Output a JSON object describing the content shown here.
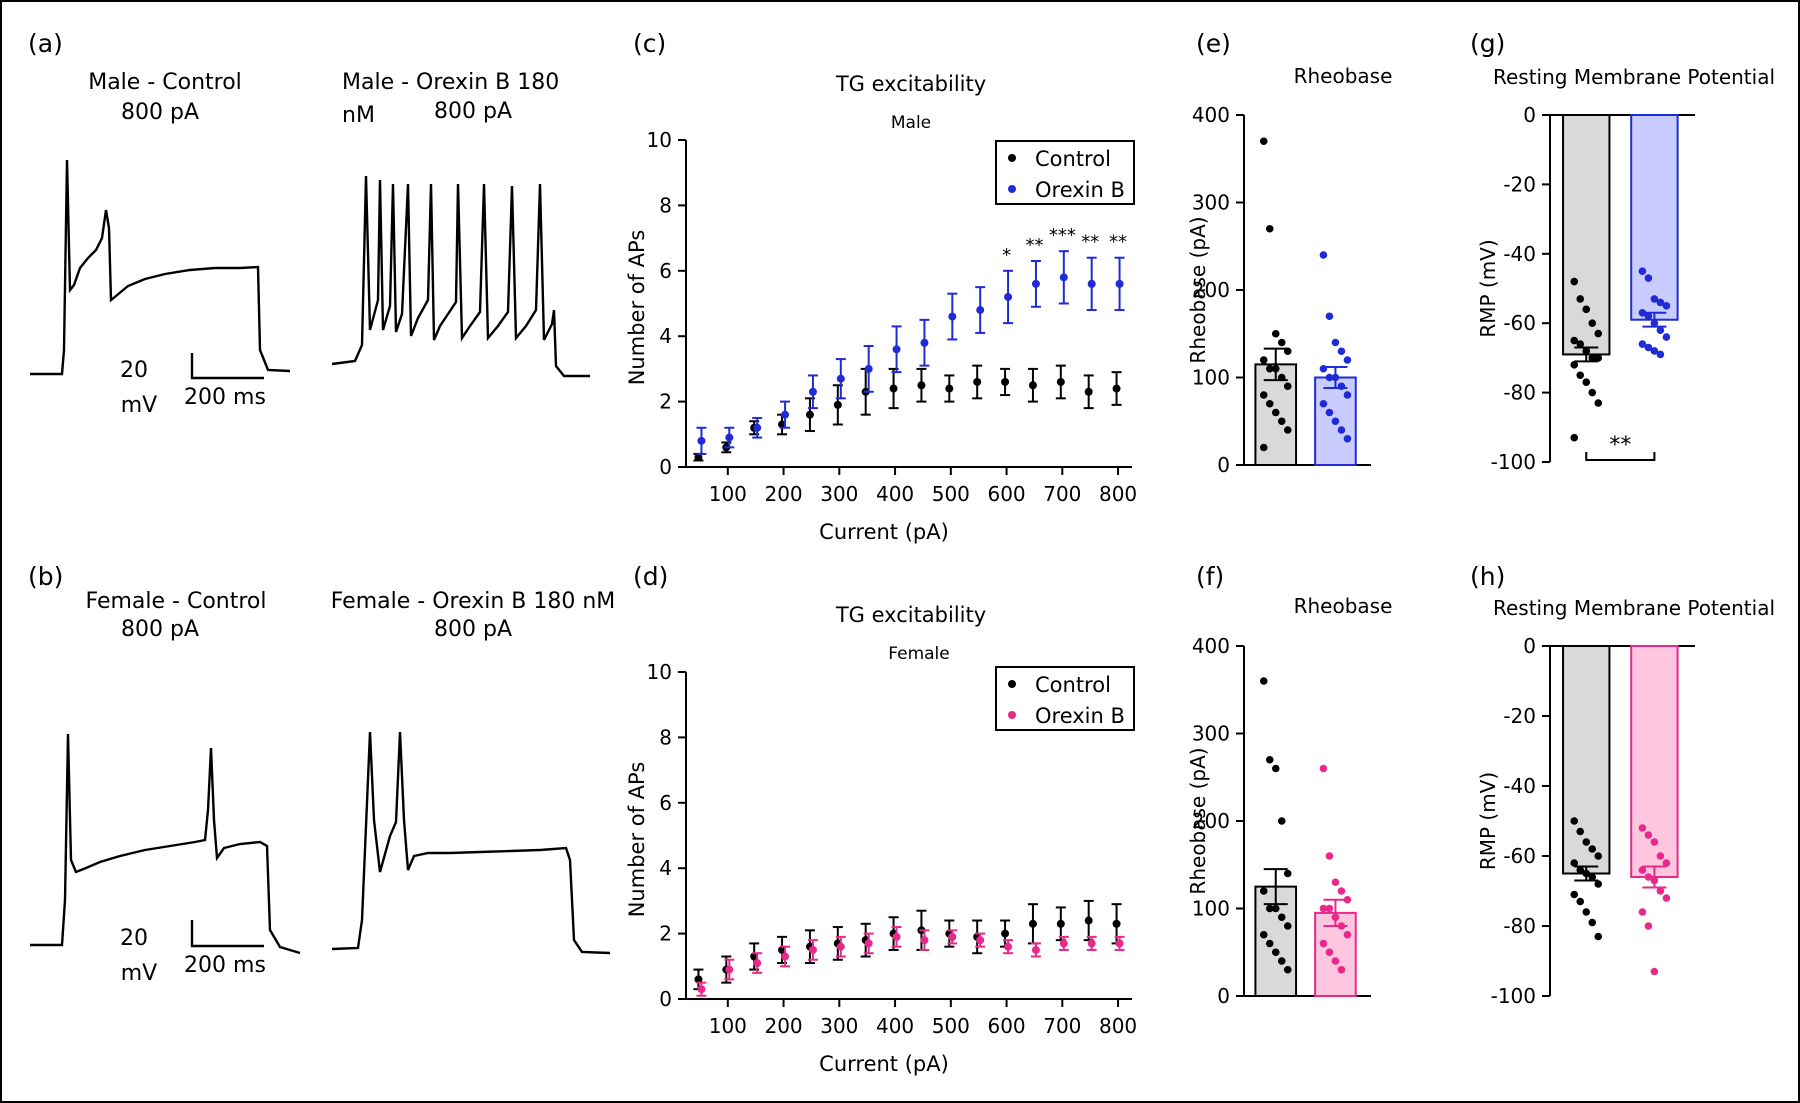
{
  "panels": {
    "a": {
      "letter": "(a)",
      "control": {
        "title": "Male - Control",
        "sub": "800 pA"
      },
      "treated": {
        "title": "Male - Orexin B 180",
        "title2": "nM",
        "sub": "800 pA"
      },
      "scale": {
        "v_value": "20",
        "v_unit": "mV",
        "t_label": "200 ms"
      }
    },
    "b": {
      "letter": "(b)",
      "control": {
        "title": "Female - Control",
        "sub": "800 pA"
      },
      "treated": {
        "title": "Female - Orexin B 180 nM",
        "sub": "800 pA"
      },
      "scale": {
        "v_value": "20",
        "v_unit": "mV",
        "t_label": "200 ms"
      }
    }
  },
  "chart_data": [
    {
      "id": "c",
      "letter": "(c)",
      "type": "scatter",
      "title": "TG excitability",
      "subtitle": "Male",
      "xlabel": "Current (pA)",
      "ylabel": "Number of APs",
      "xlim": [
        25,
        825
      ],
      "ylim": [
        0,
        10
      ],
      "xticks": [
        100,
        200,
        300,
        400,
        500,
        600,
        700,
        800
      ],
      "yticks": [
        0,
        2,
        4,
        6,
        8,
        10
      ],
      "x": [
        50,
        100,
        150,
        200,
        250,
        300,
        350,
        400,
        450,
        500,
        550,
        600,
        650,
        700,
        750,
        800
      ],
      "series": [
        {
          "name": "Control",
          "color": "#000000",
          "values": [
            0.3,
            0.6,
            1.2,
            1.3,
            1.6,
            1.9,
            2.3,
            2.4,
            2.5,
            2.4,
            2.6,
            2.6,
            2.5,
            2.6,
            2.3,
            2.4
          ],
          "errors": [
            0.1,
            0.15,
            0.2,
            0.3,
            0.5,
            0.6,
            0.7,
            0.6,
            0.5,
            0.4,
            0.5,
            0.4,
            0.5,
            0.5,
            0.5,
            0.5
          ]
        },
        {
          "name": "Orexin B",
          "color": "#1f2bd6",
          "values": [
            0.8,
            0.9,
            1.2,
            1.6,
            2.3,
            2.7,
            3.0,
            3.6,
            3.8,
            4.6,
            4.8,
            5.2,
            5.6,
            5.8,
            5.6,
            5.6
          ],
          "errors": [
            0.4,
            0.3,
            0.3,
            0.4,
            0.5,
            0.6,
            0.7,
            0.7,
            0.7,
            0.7,
            0.7,
            0.8,
            0.7,
            0.8,
            0.8,
            0.8
          ]
        }
      ],
      "annotations": [
        {
          "x": 600,
          "text": "*"
        },
        {
          "x": 650,
          "text": "**"
        },
        {
          "x": 700,
          "text": "***"
        },
        {
          "x": 750,
          "text": "**"
        },
        {
          "x": 800,
          "text": "**"
        }
      ],
      "legend_position": "top-right"
    },
    {
      "id": "d",
      "letter": "(d)",
      "type": "scatter",
      "title": "TG excitability",
      "subtitle": "Female",
      "xlabel": "Current (pA)",
      "ylabel": "Number of APs",
      "xlim": [
        25,
        825
      ],
      "ylim": [
        0,
        10
      ],
      "xticks": [
        100,
        200,
        300,
        400,
        500,
        600,
        700,
        800
      ],
      "yticks": [
        0,
        2,
        4,
        6,
        8,
        10
      ],
      "x": [
        50,
        100,
        150,
        200,
        250,
        300,
        350,
        400,
        450,
        500,
        550,
        600,
        650,
        700,
        750,
        800
      ],
      "series": [
        {
          "name": "Control",
          "color": "#000000",
          "values": [
            0.6,
            0.9,
            1.3,
            1.5,
            1.6,
            1.7,
            1.8,
            2.0,
            2.1,
            2.0,
            1.9,
            2.0,
            2.3,
            2.3,
            2.4,
            2.3
          ],
          "errors": [
            0.3,
            0.4,
            0.4,
            0.4,
            0.5,
            0.5,
            0.5,
            0.5,
            0.6,
            0.4,
            0.5,
            0.4,
            0.6,
            0.5,
            0.6,
            0.6
          ]
        },
        {
          "name": "Orexin B",
          "color": "#e8288a",
          "values": [
            0.3,
            0.9,
            1.1,
            1.3,
            1.5,
            1.6,
            1.7,
            1.9,
            1.8,
            1.9,
            1.8,
            1.6,
            1.5,
            1.7,
            1.7,
            1.7
          ],
          "errors": [
            0.2,
            0.3,
            0.3,
            0.3,
            0.3,
            0.3,
            0.3,
            0.3,
            0.3,
            0.2,
            0.2,
            0.2,
            0.2,
            0.2,
            0.2,
            0.2
          ]
        }
      ],
      "legend_position": "top-right"
    },
    {
      "id": "e",
      "letter": "(e)",
      "type": "bar",
      "title": "Rheobase",
      "ylabel": "Rheobase (pA)",
      "ylim": [
        0,
        400
      ],
      "yticks": [
        0,
        100,
        200,
        300,
        400
      ],
      "bars": [
        {
          "name": "Control",
          "fill": "#d9d9d9",
          "edge": "#000000",
          "dot": "#000000",
          "mean": 115,
          "sem": 18,
          "points": [
            370,
            270,
            150,
            140,
            130,
            120,
            110,
            110,
            100,
            90,
            80,
            70,
            60,
            50,
            40,
            20
          ]
        },
        {
          "name": "Orexin B",
          "fill": "#c8ccff",
          "edge": "#1f2bd6",
          "dot": "#1f2bd6",
          "mean": 100,
          "sem": 12,
          "points": [
            240,
            170,
            140,
            130,
            120,
            110,
            100,
            100,
            90,
            80,
            70,
            60,
            50,
            40,
            30
          ]
        }
      ]
    },
    {
      "id": "f",
      "letter": "(f)",
      "type": "bar",
      "title": "Rheobase",
      "ylabel": "Rheobase (pA)",
      "ylim": [
        0,
        400
      ],
      "yticks": [
        0,
        100,
        200,
        300,
        400
      ],
      "bars": [
        {
          "name": "Control",
          "fill": "#d9d9d9",
          "edge": "#000000",
          "dot": "#000000",
          "mean": 125,
          "sem": 20,
          "points": [
            360,
            270,
            260,
            200,
            140,
            120,
            100,
            100,
            90,
            80,
            70,
            60,
            50,
            40,
            30
          ]
        },
        {
          "name": "Orexin B",
          "fill": "#ffc6df",
          "edge": "#e8288a",
          "dot": "#e8288a",
          "mean": 95,
          "sem": 15,
          "points": [
            260,
            160,
            130,
            120,
            110,
            100,
            100,
            90,
            80,
            70,
            60,
            50,
            40,
            30
          ]
        }
      ]
    },
    {
      "id": "g",
      "letter": "(g)",
      "type": "bar",
      "title": "Resting Membrane Potential",
      "ylabel": "RMP (mV)",
      "ylim": [
        -100,
        0
      ],
      "yticks": [
        0,
        -20,
        -40,
        -60,
        -80,
        -100
      ],
      "significance": "**",
      "bars": [
        {
          "name": "Control",
          "fill": "#d9d9d9",
          "edge": "#000000",
          "dot": "#000000",
          "mean": -69,
          "sem": 2,
          "points": [
            -48,
            -53,
            -56,
            -60,
            -63,
            -65,
            -66,
            -68,
            -70,
            -70,
            -72,
            -75,
            -77,
            -80,
            -83,
            -93
          ]
        },
        {
          "name": "Orexin B",
          "fill": "#c8ccff",
          "edge": "#1f2bd6",
          "dot": "#1f2bd6",
          "mean": -59,
          "sem": 2,
          "points": [
            -45,
            -47,
            -53,
            -54,
            -55,
            -57,
            -58,
            -60,
            -62,
            -64,
            -66,
            -67,
            -68,
            -69
          ]
        }
      ]
    },
    {
      "id": "h",
      "letter": "(h)",
      "type": "bar",
      "title": "Resting Membrane Potential",
      "ylabel": "RMP (mV)",
      "ylim": [
        -100,
        0
      ],
      "yticks": [
        0,
        -20,
        -40,
        -60,
        -80,
        -100
      ],
      "bars": [
        {
          "name": "Control",
          "fill": "#d9d9d9",
          "edge": "#000000",
          "dot": "#000000",
          "mean": -65,
          "sem": 2,
          "points": [
            -50,
            -53,
            -56,
            -58,
            -60,
            -62,
            -64,
            -65,
            -66,
            -68,
            -71,
            -73,
            -76,
            -79,
            -83
          ]
        },
        {
          "name": "Orexin B",
          "fill": "#ffc6df",
          "edge": "#e8288a",
          "dot": "#e8288a",
          "mean": -66,
          "sem": 3,
          "points": [
            -52,
            -54,
            -56,
            -60,
            -62,
            -64,
            -66,
            -67,
            -70,
            -72,
            -76,
            -80,
            -93
          ]
        }
      ]
    }
  ]
}
